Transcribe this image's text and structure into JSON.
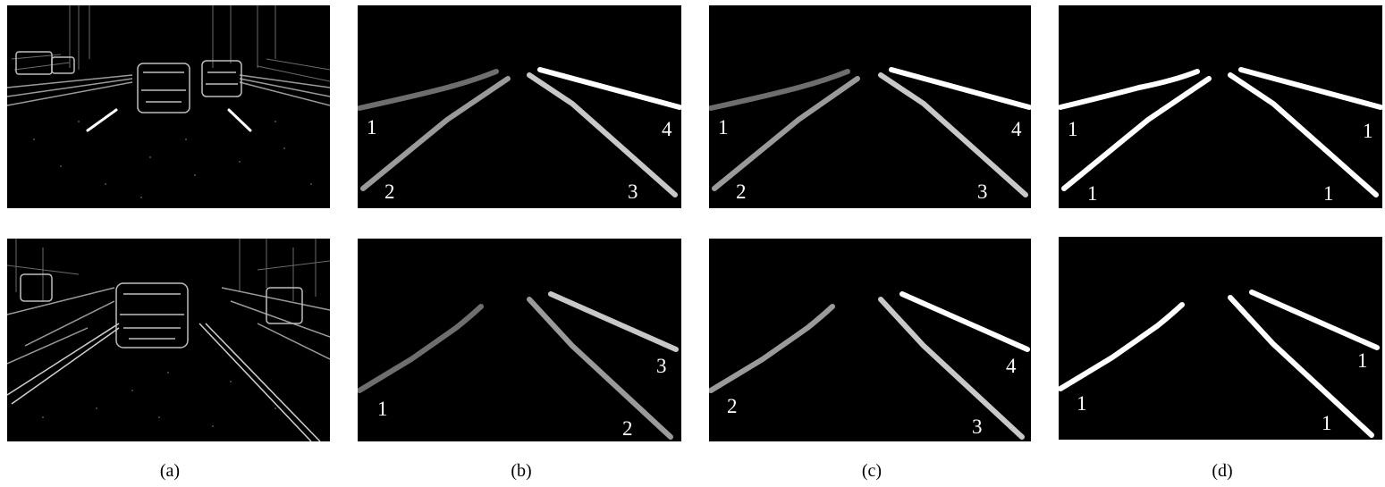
{
  "captions": [
    "(a)",
    "(b)",
    "(c)",
    "(d)"
  ],
  "lane_labels": {
    "top_b": [
      "1",
      "2",
      "3",
      "4"
    ],
    "top_c": [
      "1",
      "2",
      "3",
      "4"
    ],
    "top_d": [
      "1",
      "1",
      "1",
      "1"
    ],
    "bot_b": [
      "1",
      "2",
      "3"
    ],
    "bot_c": [
      "2",
      "3",
      "4"
    ],
    "bot_d": [
      "1",
      "1",
      "1"
    ]
  },
  "colors": {
    "background": "#ffffff",
    "panel": "#000000",
    "lane_white": "#ffffff",
    "lane_gray_light": "#c8c8c8",
    "lane_gray_mid": "#9a9a9a",
    "lane_gray_dark": "#6e6e6e"
  }
}
